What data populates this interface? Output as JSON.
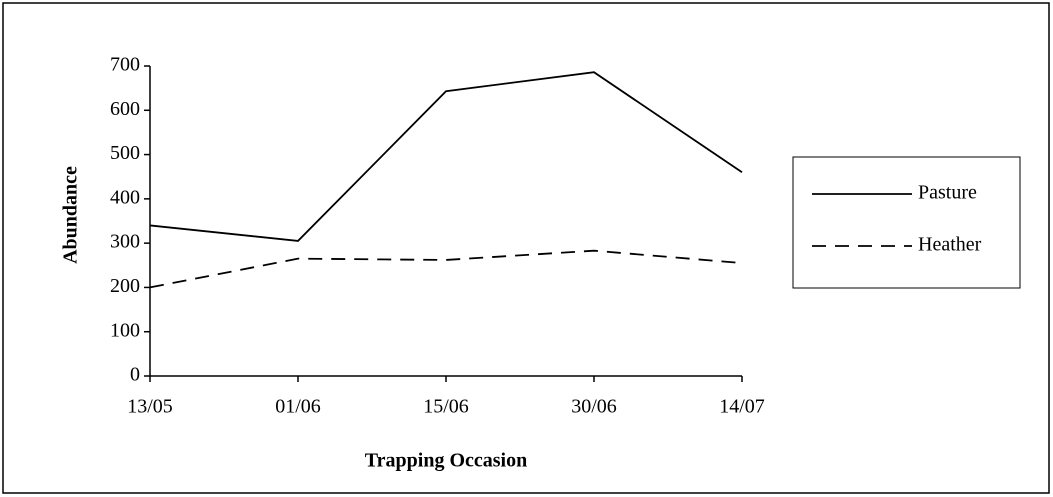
{
  "chart_data": {
    "type": "line",
    "categories": [
      "13/05",
      "01/06",
      "15/06",
      "30/06",
      "14/07"
    ],
    "series": [
      {
        "name": "Pasture",
        "color": "#000000",
        "dash": "solid",
        "values": [
          340,
          305,
          643,
          686,
          460
        ]
      },
      {
        "name": "Heather",
        "color": "#000000",
        "dash": "dashed",
        "values": [
          200,
          265,
          262,
          283,
          255
        ]
      }
    ],
    "x_label": "Trapping Occasion",
    "y_label": "Abundance",
    "ylim": [
      0,
      700
    ],
    "yticks": [
      0,
      100,
      200,
      300,
      400,
      500,
      600,
      700
    ],
    "grid": false,
    "legend": "right"
  }
}
